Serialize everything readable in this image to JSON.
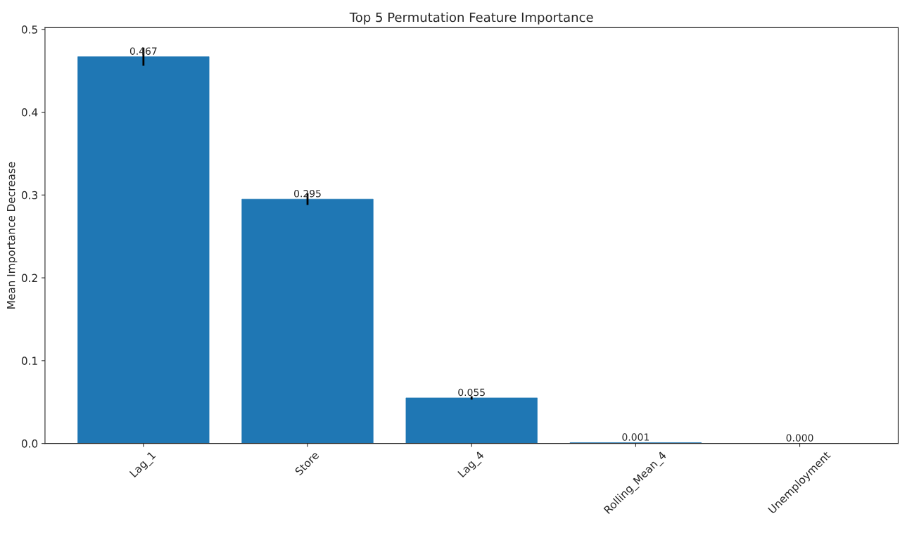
{
  "chart_data": {
    "type": "bar",
    "title": "Top 5 Permutation Feature Importance",
    "ylabel": "Mean Importance Decrease",
    "categories": [
      "Lag_1",
      "Store",
      "Lag_4",
      "Rolling_Mean_4",
      "Unemployment"
    ],
    "values": [
      0.467,
      0.295,
      0.055,
      0.001,
      0.0
    ],
    "errors": [
      0.011,
      0.007,
      0.002,
      null,
      null
    ],
    "color": "#1f77b4",
    "ylim": [
      0,
      0.502
    ],
    "yticks": [
      {
        "value": 0,
        "label": "0.0"
      },
      0.1,
      0.2,
      0.3,
      0.4,
      0.5
    ],
    "value_labels": [
      "0.467",
      "0.295",
      "0.055",
      "0.001",
      "0.000"
    ],
    "grid": false
  }
}
